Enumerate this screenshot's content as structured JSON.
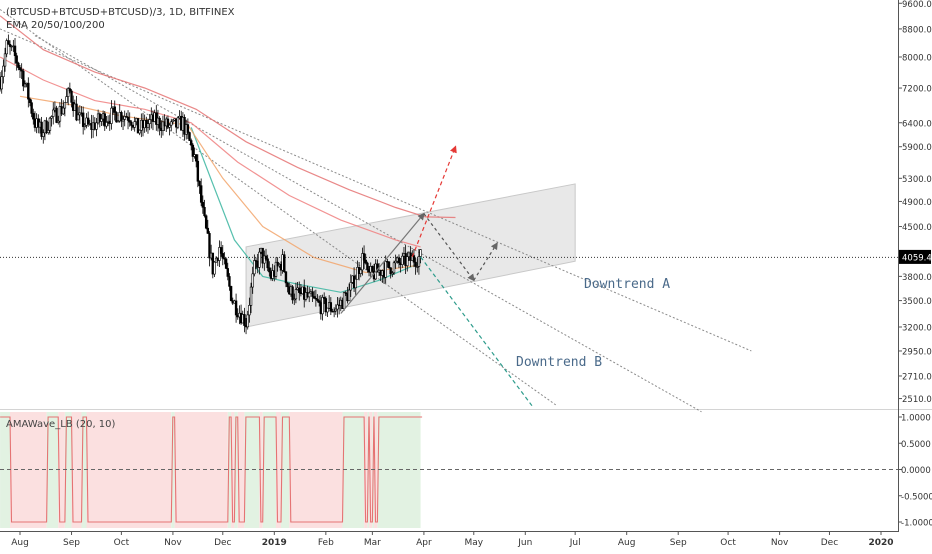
{
  "chart_data": [
    {
      "type": "candlestick",
      "title": "(BTCUSD+BTCUSD+BTCUSD)/3, 1D, BITFINEX",
      "subtitle": "EMA 20/50/100/200",
      "scale": "log",
      "ylim": [
        2400,
        9600
      ],
      "y_ticks": [
        9600,
        8800,
        8000,
        7200,
        6400,
        5900,
        5300,
        4900,
        4500,
        4059.4,
        3800,
        3500,
        3200,
        2950,
        2710,
        2510
      ],
      "y_tick_labels": [
        "9600.0",
        "8800.0",
        "8000.0",
        "7200.0",
        "6400.0",
        "5900.0",
        "5300.0",
        "4900.0",
        "4500.0",
        "4059.4",
        "3800.0",
        "3500.0",
        "3200.0",
        "2950.0",
        "2710.0",
        "2510.0"
      ],
      "last_price": 4059.4,
      "x_labels": [
        "Aug",
        "Sep",
        "Oct",
        "Nov",
        "Dec",
        "2019",
        "Feb",
        "Mar",
        "Apr",
        "May",
        "Jun",
        "Jul",
        "Aug",
        "Sep",
        "Oct",
        "Nov",
        "Dec",
        "2020"
      ],
      "x_label_dates": [
        "2018-08-01",
        "2018-09-01",
        "2018-10-01",
        "2018-11-01",
        "2018-12-01",
        "2019-01-01",
        "2019-02-01",
        "2019-03-01",
        "2019-04-01",
        "2019-05-01",
        "2019-06-01",
        "2019-07-01",
        "2019-08-01",
        "2019-09-01",
        "2019-10-01",
        "2019-11-01",
        "2019-12-01",
        "2020-01-01"
      ],
      "price_path": [
        [
          "2018-07-20",
          7400
        ],
        [
          "2018-07-24",
          8300
        ],
        [
          "2018-07-28",
          8100
        ],
        [
          "2018-08-02",
          7600
        ],
        [
          "2018-08-06",
          7000
        ],
        [
          "2018-08-10",
          6400
        ],
        [
          "2018-08-14",
          6200
        ],
        [
          "2018-08-20",
          6500
        ],
        [
          "2018-08-26",
          6700
        ],
        [
          "2018-08-31",
          7100
        ],
        [
          "2018-09-05",
          6500
        ],
        [
          "2018-09-12",
          6300
        ],
        [
          "2018-09-20",
          6500
        ],
        [
          "2018-09-28",
          6600
        ],
        [
          "2018-10-06",
          6550
        ],
        [
          "2018-10-11",
          6250
        ],
        [
          "2018-10-20",
          6450
        ],
        [
          "2018-10-31",
          6300
        ],
        [
          "2018-11-07",
          6400
        ],
        [
          "2018-11-14",
          5700
        ],
        [
          "2018-11-19",
          4700
        ],
        [
          "2018-11-25",
          3900
        ],
        [
          "2018-11-29",
          4200
        ],
        [
          "2018-12-07",
          3500
        ],
        [
          "2018-12-15",
          3250
        ],
        [
          "2018-12-20",
          3900
        ],
        [
          "2018-12-24",
          4100
        ],
        [
          "2018-12-30",
          3800
        ],
        [
          "2019-01-06",
          4000
        ],
        [
          "2019-01-10",
          3600
        ],
        [
          "2019-01-20",
          3550
        ],
        [
          "2019-01-28",
          3450
        ],
        [
          "2019-02-07",
          3400
        ],
        [
          "2019-02-15",
          3600
        ],
        [
          "2019-02-24",
          4100
        ],
        [
          "2019-02-26",
          3800
        ],
        [
          "2019-03-08",
          3900
        ],
        [
          "2019-03-15",
          3950
        ],
        [
          "2019-03-23",
          4020
        ],
        [
          "2019-03-30",
          4059.4
        ]
      ],
      "ema": [
        {
          "period": 20,
          "color": "#3ab5a0",
          "points": [
            [
              "2018-11-12",
              6300
            ],
            [
              "2018-11-25",
              5200
            ],
            [
              "2018-12-08",
              4300
            ],
            [
              "2018-12-25",
              3800
            ],
            [
              "2019-01-15",
              3700
            ],
            [
              "2019-02-10",
              3600
            ],
            [
              "2019-03-05",
              3750
            ],
            [
              "2019-03-30",
              3980
            ]
          ]
        },
        {
          "period": 50,
          "color": "#f2a46b",
          "points": [
            [
              "2018-08-01",
              7000
            ],
            [
              "2018-09-01",
              6800
            ],
            [
              "2018-10-01",
              6550
            ],
            [
              "2018-11-10",
              6350
            ],
            [
              "2018-12-01",
              5300
            ],
            [
              "2018-12-25",
              4500
            ],
            [
              "2019-01-25",
              4050
            ],
            [
              "2019-02-25",
              3850
            ],
            [
              "2019-03-30",
              3950
            ]
          ]
        },
        {
          "period": 100,
          "color": "#f08080",
          "points": [
            [
              "2018-07-20",
              8000
            ],
            [
              "2018-08-15",
              7400
            ],
            [
              "2018-09-15",
              6900
            ],
            [
              "2018-10-15",
              6700
            ],
            [
              "2018-11-12",
              6400
            ],
            [
              "2018-12-10",
              5600
            ],
            [
              "2019-01-10",
              5000
            ],
            [
              "2019-02-10",
              4600
            ],
            [
              "2019-03-15",
              4300
            ],
            [
              "2019-03-30",
              4200
            ]
          ]
        },
        {
          "period": 200,
          "color": "#e57373",
          "points": [
            [
              "2018-07-20",
              9200
            ],
            [
              "2018-08-15",
              8200
            ],
            [
              "2018-09-15",
              7600
            ],
            [
              "2018-10-15",
              7200
            ],
            [
              "2018-11-15",
              6700
            ],
            [
              "2018-12-15",
              6000
            ],
            [
              "2019-01-15",
              5500
            ],
            [
              "2019-02-15",
              5100
            ],
            [
              "2019-03-15",
              4800
            ],
            [
              "2019-04-02",
              4650
            ],
            [
              "2019-04-20",
              4640
            ]
          ]
        }
      ],
      "trendlines": [
        {
          "label": "Downtrend A",
          "from": [
            "2018-07-20",
            8800
          ],
          "to": [
            "2019-10-15",
            2950
          ]
        },
        {
          "label": "Downtrend B",
          "from": [
            "2018-07-20",
            9400
          ],
          "to": [
            "2019-06-20",
            2450
          ]
        },
        {
          "label": "",
          "from": [
            "2018-08-10",
            8600
          ],
          "to": [
            "2019-09-15",
            2400
          ]
        }
      ],
      "channel": {
        "lower_from": [
          "2018-12-15",
          3200
        ],
        "lower_to": [
          "2019-07-01",
          4000
        ],
        "upper_from": [
          "2018-12-15",
          4200
        ],
        "upper_to": [
          "2019-07-01",
          5200
        ]
      },
      "annotation_labels": [
        "Downtrend A",
        "Downtrend B"
      ],
      "colors": {
        "up": "#26a69a",
        "down": "#ef5350",
        "candle": "#000000",
        "projection": "#e53935",
        "projection_alt": "#2e9c8c",
        "channel_fill": "#e4e4e4"
      }
    },
    {
      "type": "area",
      "title": "AMAWave_LB (20, 10)",
      "ylim": [
        -1.1,
        1.1
      ],
      "y_ticks": [
        1.0,
        0.5,
        0.0,
        -0.5,
        -1.0
      ],
      "y_tick_labels": [
        "1.0000",
        "0.5000",
        "0.0000",
        "-0.5000",
        "-1.0000"
      ],
      "signal": [
        [
          "2018-07-20",
          1
        ],
        [
          "2018-07-26",
          -1
        ],
        [
          "2018-08-17",
          1
        ],
        [
          "2018-08-24",
          -1
        ],
        [
          "2018-08-28",
          1
        ],
        [
          "2018-09-01",
          -1
        ],
        [
          "2018-09-07",
          1
        ],
        [
          "2018-09-10",
          -1
        ],
        [
          "2018-10-31",
          1
        ],
        [
          "2018-11-02",
          -1
        ],
        [
          "2018-12-04",
          1
        ],
        [
          "2018-12-06",
          -1
        ],
        [
          "2018-12-08",
          1
        ],
        [
          "2018-12-10",
          -1
        ],
        [
          "2018-12-14",
          1
        ],
        [
          "2018-12-23",
          -1
        ],
        [
          "2018-12-25",
          1
        ],
        [
          "2019-01-02",
          -1
        ],
        [
          "2019-01-05",
          1
        ],
        [
          "2019-01-10",
          -1
        ],
        [
          "2019-02-11",
          1
        ],
        [
          "2019-02-24",
          -1
        ],
        [
          "2019-02-26",
          1
        ],
        [
          "2019-02-27",
          -1
        ],
        [
          "2019-03-01",
          1
        ],
        [
          "2019-03-02",
          -1
        ],
        [
          "2019-03-04",
          1
        ],
        [
          "2019-03-30",
          1
        ]
      ],
      "colors": {
        "positive_fill": "#e2f2e2",
        "negative_fill": "#fbe0e0",
        "line": "#e57373",
        "zero": "#666666"
      }
    }
  ]
}
